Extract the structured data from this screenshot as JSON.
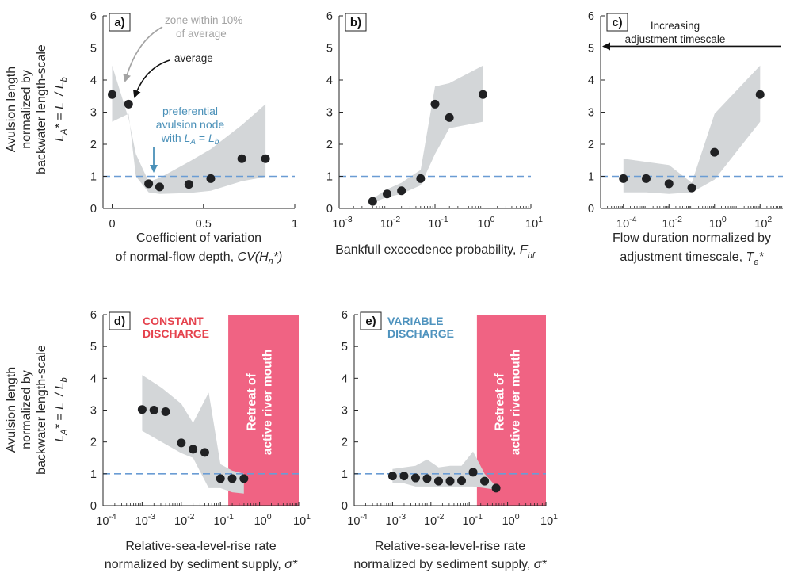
{
  "colors": {
    "band": "#d3d6d8",
    "point": "#202123",
    "reference": "#6a9cd4",
    "axis": "#262626",
    "retreat": "#f06383",
    "annotation_grey": "#a3a3a3",
    "annotation_blue": "#4a90b8",
    "tag_red": "#e5424d",
    "tag_blue": "#4f93be"
  },
  "ylabel": {
    "line1": "Avulsion length",
    "line2": "normalized by",
    "line3": "backwater length-scale",
    "formula_a": "L",
    "formula_a_sub": "A",
    "formula_b": "* = L",
    "formula_c": "/ L",
    "formula_c_sub": "b"
  },
  "annotations": {
    "zone_line1": "zone within 10%",
    "zone_line2": "of average",
    "average": "average",
    "pref_line1": "preferential",
    "pref_line2": "avulsion node",
    "pref_line3_pre": "with ",
    "pref_LA": "L",
    "pref_LA_sub": "A",
    "pref_eq": " = ",
    "pref_Lb": "L",
    "pref_Lb_sub": "b",
    "increasing_line1": "Increasing",
    "increasing_line2": "adjustment timescale",
    "constant_line1": "CONSTANT",
    "constant_line2": "DISCHARGE",
    "variable_line1": "VARIABLE",
    "variable_line2": "DISCHARGE",
    "retreat_line1": "Retreat of",
    "retreat_line2": "active river mouth"
  },
  "chart_data": [
    {
      "panel": "a)",
      "type": "scatter",
      "xscale": "linear",
      "xlim": [
        -0.05,
        1
      ],
      "ylim": [
        0,
        6
      ],
      "xticks": [
        0,
        0.5,
        1
      ],
      "xticklabels": [
        "0",
        "0.5",
        "1"
      ],
      "yticks": [
        0,
        1,
        2,
        3,
        4,
        5,
        6
      ],
      "reference_y": 1,
      "xlabel_line1": "Coefficient of variation",
      "xlabel_line2_pre": "of normal-flow depth, ",
      "xlabel_line2_sym": "CV(H",
      "xlabel_line2_sub": "n",
      "xlabel_line2_post": "*)",
      "points": [
        [
          0,
          3.55
        ],
        [
          0.09,
          3.25
        ],
        [
          0.2,
          0.77
        ],
        [
          0.26,
          0.67
        ],
        [
          0.42,
          0.75
        ],
        [
          0.54,
          0.93
        ],
        [
          0.71,
          1.55
        ],
        [
          0.84,
          1.55
        ]
      ],
      "band_upper": [
        [
          0,
          4.45
        ],
        [
          0.09,
          2.8
        ],
        [
          0.13,
          1.7
        ],
        [
          0.2,
          0.83
        ],
        [
          0.26,
          0.95
        ],
        [
          0.42,
          1.45
        ],
        [
          0.54,
          1.85
        ],
        [
          0.71,
          2.6
        ],
        [
          0.84,
          3.25
        ]
      ],
      "band_lower": [
        [
          0.84,
          0.98
        ],
        [
          0.71,
          0.85
        ],
        [
          0.54,
          0.55
        ],
        [
          0.42,
          0.48
        ],
        [
          0.26,
          0.45
        ],
        [
          0.2,
          0.5
        ],
        [
          0.13,
          1.0
        ],
        [
          0.09,
          2.95
        ],
        [
          0,
          2.7
        ]
      ]
    },
    {
      "panel": "b)",
      "type": "scatter",
      "xscale": "log",
      "xlim": [
        -3,
        1
      ],
      "ylim": [
        0,
        6
      ],
      "xticks": [
        -3,
        -2,
        -1,
        0,
        1
      ],
      "xticklabels": [
        "10",
        "10",
        "10",
        "10",
        "10"
      ],
      "xtickexp": [
        "-3",
        "-2",
        "-1",
        "0",
        "1"
      ],
      "yticks": [
        0,
        1,
        2,
        3,
        4,
        5,
        6
      ],
      "reference_y": 1,
      "xlabel_line1": "Bankfull exceedence probability, ",
      "xlabel_sym": "F",
      "xlabel_sub": "bf",
      "points": [
        [
          -2.3,
          0.22
        ],
        [
          -2.0,
          0.45
        ],
        [
          -1.7,
          0.55
        ],
        [
          -1.3,
          0.93
        ],
        [
          -1.0,
          3.25
        ],
        [
          -0.7,
          2.83
        ],
        [
          0,
          3.55
        ]
      ],
      "band_upper": [
        [
          -2.3,
          0.3
        ],
        [
          -2.0,
          0.6
        ],
        [
          -1.7,
          0.8
        ],
        [
          -1.3,
          1.2
        ],
        [
          -1.0,
          3.8
        ],
        [
          -0.7,
          3.9
        ],
        [
          0,
          4.45
        ]
      ],
      "band_lower": [
        [
          0,
          2.7
        ],
        [
          -0.7,
          2.5
        ],
        [
          -1.0,
          1.7
        ],
        [
          -1.3,
          0.72
        ],
        [
          -1.7,
          0.45
        ],
        [
          -2.0,
          0.35
        ],
        [
          -2.3,
          0.18
        ]
      ]
    },
    {
      "panel": "c)",
      "type": "scatter",
      "xscale": "log",
      "xlim": [
        -5,
        3
      ],
      "ylim": [
        0,
        6
      ],
      "xticks": [
        -4,
        -2,
        0,
        2
      ],
      "xticklabels": [
        "10",
        "10",
        "10",
        "10"
      ],
      "xtickexp": [
        "-4",
        "-2",
        "0",
        "2"
      ],
      "yticks": [
        0,
        1,
        2,
        3,
        4,
        5,
        6
      ],
      "reference_y": 1,
      "xlabel_line1": "Flow duration normalized by",
      "xlabel_line2_pre": "adjustment timescale, ",
      "xlabel_sym": "T",
      "xlabel_sub": "e",
      "xlabel_post": "*",
      "arrow": {
        "from_x": 3,
        "to_x": -5,
        "y": 5.05
      },
      "points": [
        [
          -4,
          0.93
        ],
        [
          -3,
          0.93
        ],
        [
          -2,
          0.77
        ],
        [
          -1,
          0.64
        ],
        [
          0,
          1.75
        ],
        [
          2,
          3.55
        ]
      ],
      "band_upper": [
        [
          -4,
          1.55
        ],
        [
          -3,
          1.45
        ],
        [
          -2,
          1.35
        ],
        [
          -1,
          0.8
        ],
        [
          0,
          2.95
        ],
        [
          2,
          4.45
        ]
      ],
      "band_lower": [
        [
          2,
          2.7
        ],
        [
          0,
          0.9
        ],
        [
          -1,
          0.5
        ],
        [
          -2,
          0.45
        ],
        [
          -3,
          0.5
        ],
        [
          -4,
          0.5
        ]
      ]
    },
    {
      "panel": "d)",
      "type": "scatter",
      "xscale": "log",
      "xlim": [
        -4,
        1
      ],
      "ylim": [
        0,
        6
      ],
      "xticks": [
        -4,
        -3,
        -2,
        -1,
        0,
        1
      ],
      "xticklabels": [
        "10",
        "10",
        "10",
        "10",
        "10",
        "10"
      ],
      "xtickexp": [
        "-4",
        "-3",
        "-2",
        "-1",
        "0",
        "1"
      ],
      "yticks": [
        0,
        1,
        2,
        3,
        4,
        5,
        6
      ],
      "reference_y": 1,
      "shaded_region": {
        "x_from": -0.8,
        "x_to": 1
      },
      "xlabel_line1": "Relative-sea-level-rise rate",
      "xlabel_line2_pre": "normalized by sediment supply, ",
      "xlabel_sym": "σ*",
      "points": [
        [
          -3,
          3.02
        ],
        [
          -2.7,
          3.0
        ],
        [
          -2.4,
          2.95
        ],
        [
          -2,
          1.97
        ],
        [
          -1.7,
          1.77
        ],
        [
          -1.4,
          1.67
        ],
        [
          -1,
          0.85
        ],
        [
          -0.7,
          0.85
        ],
        [
          -0.4,
          0.85
        ]
      ],
      "band_upper": [
        [
          -3,
          4.1
        ],
        [
          -2.5,
          3.7
        ],
        [
          -2,
          3.2
        ],
        [
          -1.7,
          2.6
        ],
        [
          -1.3,
          3.55
        ],
        [
          -1.0,
          1.3
        ],
        [
          -0.7,
          1.1
        ],
        [
          -0.4,
          1.0
        ]
      ],
      "band_lower": [
        [
          -0.4,
          0.38
        ],
        [
          -0.7,
          0.42
        ],
        [
          -1.0,
          0.55
        ],
        [
          -1.3,
          0.55
        ],
        [
          -1.7,
          1.5
        ],
        [
          -2,
          1.65
        ],
        [
          -2.5,
          2.0
        ],
        [
          -3,
          2.35
        ]
      ]
    },
    {
      "panel": "e)",
      "type": "scatter",
      "xscale": "log",
      "xlim": [
        -4,
        1
      ],
      "ylim": [
        0,
        6
      ],
      "xticks": [
        -4,
        -3,
        -2,
        -1,
        0,
        1
      ],
      "xticklabels": [
        "10",
        "10",
        "10",
        "10",
        "10",
        "10"
      ],
      "xtickexp": [
        "-4",
        "-3",
        "-2",
        "-1",
        "0",
        "1"
      ],
      "yticks": [
        0,
        1,
        2,
        3,
        4,
        5,
        6
      ],
      "reference_y": 1,
      "shaded_region": {
        "x_from": -0.8,
        "x_to": 1
      },
      "xlabel_line1": "Relative-sea-level-rise rate",
      "xlabel_line2_pre": "normalized by sediment supply, ",
      "xlabel_sym": "σ*",
      "points": [
        [
          -3,
          0.93
        ],
        [
          -2.7,
          0.93
        ],
        [
          -2.4,
          0.87
        ],
        [
          -2.1,
          0.85
        ],
        [
          -1.8,
          0.77
        ],
        [
          -1.5,
          0.77
        ],
        [
          -1.2,
          0.78
        ],
        [
          -0.9,
          1.05
        ],
        [
          -0.6,
          0.77
        ],
        [
          -0.3,
          0.55
        ]
      ],
      "band_upper": [
        [
          -3,
          1.15
        ],
        [
          -2.7,
          1.2
        ],
        [
          -2.4,
          1.25
        ],
        [
          -2.1,
          1.45
        ],
        [
          -1.8,
          1.2
        ],
        [
          -1.5,
          1.25
        ],
        [
          -1.2,
          1.25
        ],
        [
          -0.9,
          1.7
        ],
        [
          -0.6,
          1.0
        ],
        [
          -0.3,
          0.6
        ]
      ],
      "band_lower": [
        [
          -0.3,
          0.5
        ],
        [
          -0.6,
          0.55
        ],
        [
          -0.9,
          0.6
        ],
        [
          -1.2,
          0.6
        ],
        [
          -1.5,
          0.6
        ],
        [
          -1.8,
          0.6
        ],
        [
          -2.1,
          0.6
        ],
        [
          -2.4,
          0.6
        ],
        [
          -2.7,
          0.7
        ],
        [
          -3,
          0.7
        ]
      ]
    }
  ]
}
